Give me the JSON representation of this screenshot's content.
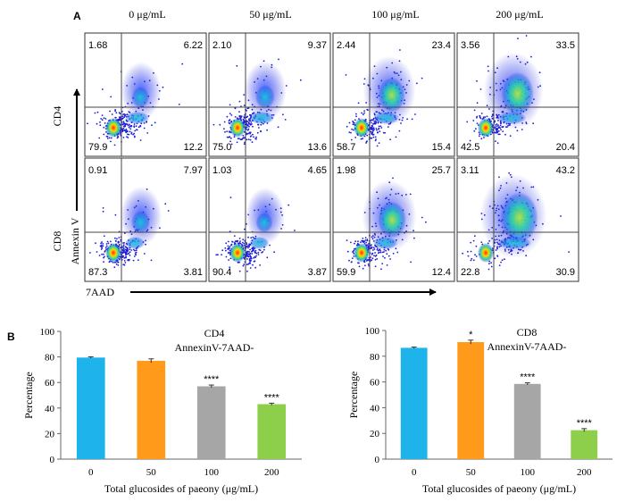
{
  "figure": {
    "panel_a_label": "A",
    "panel_b_label": "B",
    "concentrations": [
      "0 μg/mL",
      "50 μg/mL",
      "100 μg/mL",
      "200 μg/mL"
    ],
    "row_labels": [
      "CD4",
      "CD8"
    ],
    "y_axis_label": "Annexin V",
    "x_axis_label": "7AAD",
    "colors": {
      "bar_0": "#1fb3ec",
      "bar_50": "#ff9a1a",
      "bar_100": "#a6a6a6",
      "bar_200": "#8dce4a",
      "density_low": "#1b1bd9",
      "density_mid": "#19c8d8",
      "density_high": "#ff2a00"
    }
  },
  "chart_data": [
    {
      "type": "scatter",
      "title": "CD4",
      "panels": [
        {
          "condition": "0 μg/mL",
          "quadrants": {
            "upper_left": "1.68",
            "upper_right": "6.22",
            "lower_left": "79.9",
            "lower_right": "12.2"
          }
        },
        {
          "condition": "50 μg/mL",
          "quadrants": {
            "upper_left": "2.10",
            "upper_right": "9.37",
            "lower_left": "75.0",
            "lower_right": "13.6"
          }
        },
        {
          "condition": "100 μg/mL",
          "quadrants": {
            "upper_left": "2.44",
            "upper_right": "23.4",
            "lower_left": "58.7",
            "lower_right": "15.4"
          }
        },
        {
          "condition": "200 μg/mL",
          "quadrants": {
            "upper_left": "3.56",
            "upper_right": "33.5",
            "lower_left": "42.5",
            "lower_right": "20.4"
          }
        }
      ],
      "xlabel": "7AAD",
      "ylabel": "Annexin V"
    },
    {
      "type": "scatter",
      "title": "CD8",
      "panels": [
        {
          "condition": "0 μg/mL",
          "quadrants": {
            "upper_left": "0.91",
            "upper_right": "7.97",
            "lower_left": "87.3",
            "lower_right": "3.81"
          }
        },
        {
          "condition": "50 μg/mL",
          "quadrants": {
            "upper_left": "1.03",
            "upper_right": "4.65",
            "lower_left": "90.4",
            "lower_right": "3.87"
          }
        },
        {
          "condition": "100 μg/mL",
          "quadrants": {
            "upper_left": "1.98",
            "upper_right": "25.7",
            "lower_left": "59.9",
            "lower_right": "12.4"
          }
        },
        {
          "condition": "200 μg/mL",
          "quadrants": {
            "upper_left": "3.11",
            "upper_right": "43.2",
            "lower_left": "22.8",
            "lower_right": "30.9"
          }
        }
      ],
      "xlabel": "7AAD",
      "ylabel": "Annexin V"
    },
    {
      "type": "bar",
      "title": "CD4",
      "subtitle": "AnnexinV-7AAD-",
      "categories": [
        "0",
        "50",
        "100",
        "200"
      ],
      "values": [
        79.5,
        77,
        57,
        43
      ],
      "errors": [
        0.6,
        1.5,
        1.0,
        0.8
      ],
      "significance": [
        "",
        "",
        "****",
        "****"
      ],
      "xlabel": "Total glucosides of paeony (μg/mL)",
      "ylabel": "Percentage",
      "ylim": [
        0,
        100
      ],
      "yticks": [
        "0",
        "20",
        "40",
        "60",
        "80",
        "100"
      ]
    },
    {
      "type": "bar",
      "title": "CD8",
      "subtitle": "AnnexinV-7AAD-",
      "categories": [
        "0",
        "50",
        "100",
        "200"
      ],
      "values": [
        86.5,
        91,
        58.5,
        22.5
      ],
      "errors": [
        0.6,
        1.5,
        0.8,
        1.2
      ],
      "significance": [
        "",
        "*",
        "****",
        "****"
      ],
      "xlabel": "Total glucosides of paeony (μg/mL)",
      "ylabel": "Percentage",
      "ylim": [
        0,
        100
      ],
      "yticks": [
        "0",
        "20",
        "40",
        "60",
        "80",
        "100"
      ]
    }
  ]
}
